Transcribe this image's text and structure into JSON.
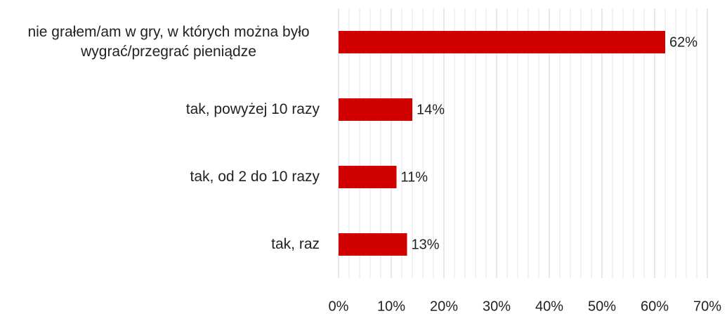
{
  "chart_data": {
    "type": "bar",
    "orientation": "horizontal",
    "categories": [
      "nie grałem/am w gry, w których można było wygrać/przegrać pieniądze",
      "tak, powyżej 10 razy",
      "tak, od 2 do 10 razy",
      "tak, raz"
    ],
    "values": [
      62,
      14,
      11,
      13
    ],
    "value_labels": [
      "62%",
      "14%",
      "11%",
      "13%"
    ],
    "color": "#d00000",
    "xlim": [
      0,
      70
    ],
    "xticks": [
      {
        "value": 0,
        "label": "0%"
      },
      {
        "value": 10,
        "label": "10%"
      },
      {
        "value": 20,
        "label": "20%"
      },
      {
        "value": 30,
        "label": "30%"
      },
      {
        "value": 40,
        "label": "40%"
      },
      {
        "value": 50,
        "label": "50%"
      },
      {
        "value": 60,
        "label": "60%"
      },
      {
        "value": 70,
        "label": "70%"
      }
    ],
    "minor_xticks": [
      2,
      4,
      6,
      8,
      12,
      14,
      16,
      18,
      22,
      24,
      26,
      28,
      32,
      34,
      36,
      38,
      42,
      44,
      46,
      48,
      52,
      54,
      56,
      58,
      62,
      64,
      66,
      68
    ],
    "grid": true
  }
}
